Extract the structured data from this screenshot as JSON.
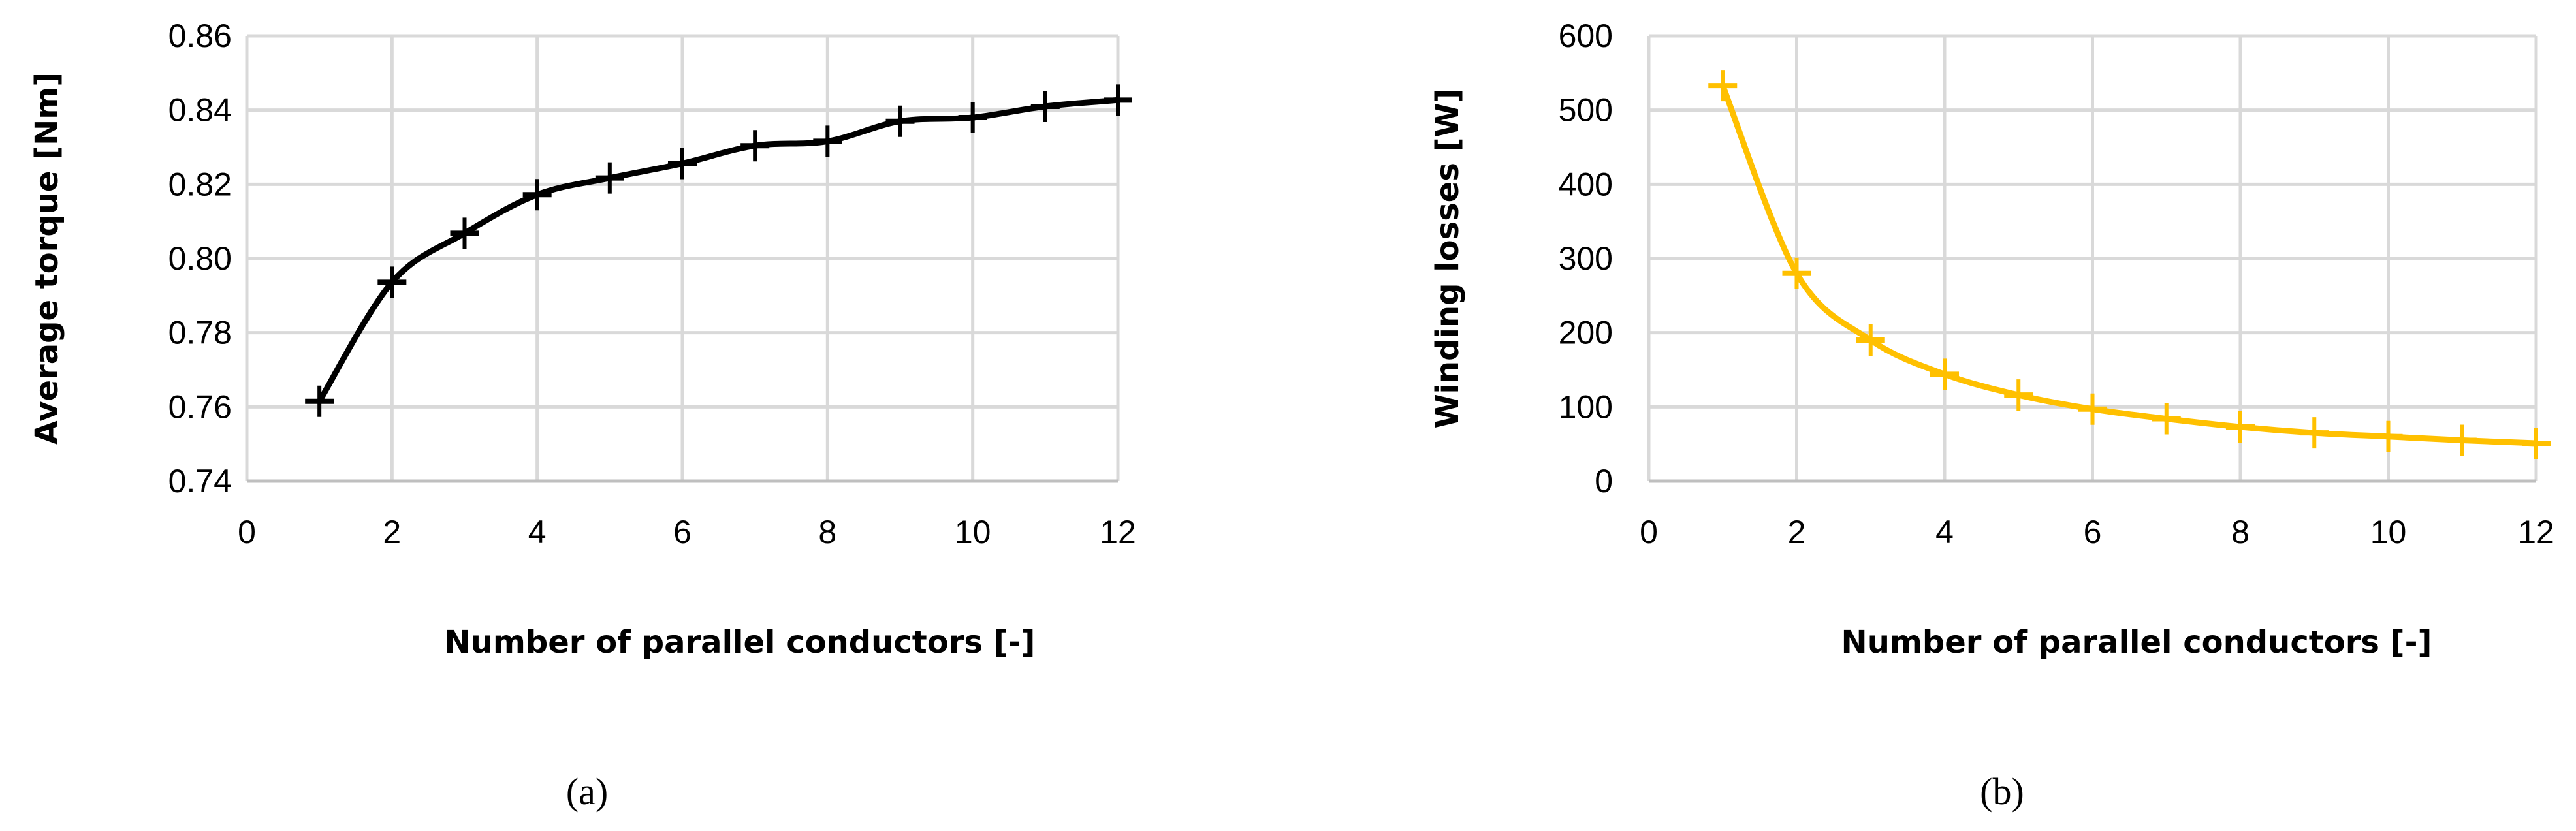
{
  "chart_data": [
    {
      "type": "line",
      "panel_label": "(a)",
      "xlabel": "Number of parallel conductors [-]",
      "ylabel": "Average torque [Nm]",
      "xlim": [
        0,
        12
      ],
      "ylim": [
        0.74,
        0.86
      ],
      "xticks": [
        "0",
        "2",
        "4",
        "6",
        "8",
        "10",
        "12"
      ],
      "yticks": [
        "0.74",
        "0.76",
        "0.78",
        "0.80",
        "0.82",
        "0.84",
        "0.86"
      ],
      "grid": true,
      "marker": "plus",
      "color": "#000000",
      "x": [
        1,
        2,
        3,
        4,
        5,
        6,
        7,
        8,
        9,
        10,
        11,
        12
      ],
      "y": [
        0.7615,
        0.7936,
        0.8068,
        0.8172,
        0.8217,
        0.8256,
        0.8304,
        0.8316,
        0.837,
        0.838,
        0.841,
        0.8427
      ]
    },
    {
      "type": "line",
      "panel_label": "(b)",
      "xlabel": "Number of parallel conductors [-]",
      "ylabel": "Winding losses [W]",
      "xlim": [
        0,
        12
      ],
      "ylim": [
        0,
        600
      ],
      "xticks": [
        "0",
        "2",
        "4",
        "6",
        "8",
        "10",
        "12"
      ],
      "yticks": [
        "0",
        "100",
        "200",
        "300",
        "400",
        "500",
        "600"
      ],
      "grid": true,
      "marker": "plus",
      "color": "#FFC000",
      "x": [
        1,
        2,
        3,
        4,
        5,
        6,
        7,
        8,
        9,
        10,
        11,
        12
      ],
      "y": [
        533,
        280,
        190,
        144,
        116,
        97,
        84,
        73,
        65,
        60,
        55,
        51
      ]
    }
  ]
}
